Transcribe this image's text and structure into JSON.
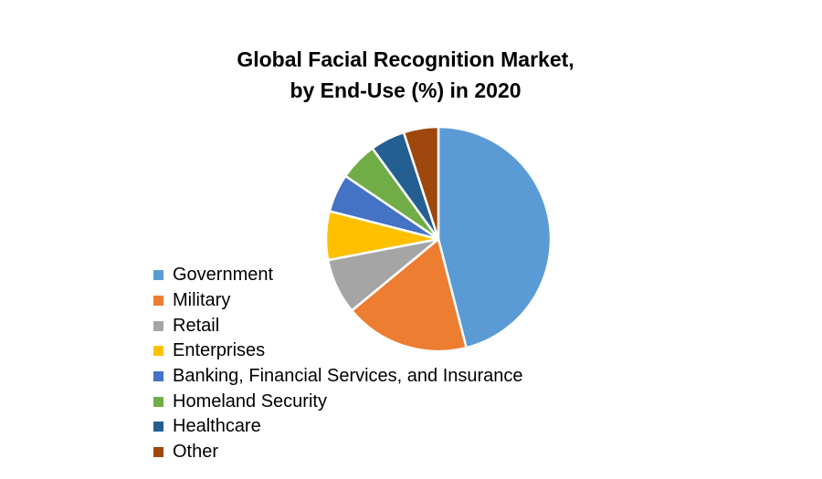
{
  "chart_data": {
    "type": "pie",
    "title_line1": "Global Facial Recognition Market,",
    "title_line2": "by End-Use (%) in 2020",
    "legend_position": "left",
    "slices": [
      {
        "label": "Government",
        "value": 46,
        "color": "#5B9BD5"
      },
      {
        "label": "Military",
        "value": 18,
        "color": "#ED7D31"
      },
      {
        "label": "Retail",
        "value": 8,
        "color": "#A5A5A5"
      },
      {
        "label": "Enterprises",
        "value": 7,
        "color": "#FFC000"
      },
      {
        "label": "Banking, Financial Services, and Insurance",
        "value": 5.5,
        "color": "#4472C4"
      },
      {
        "label": "Homeland Security",
        "value": 5.5,
        "color": "#70AD47"
      },
      {
        "label": "Healthcare",
        "value": 5,
        "color": "#255E91"
      },
      {
        "label": "Other",
        "value": 5,
        "color": "#9E480E"
      }
    ]
  }
}
